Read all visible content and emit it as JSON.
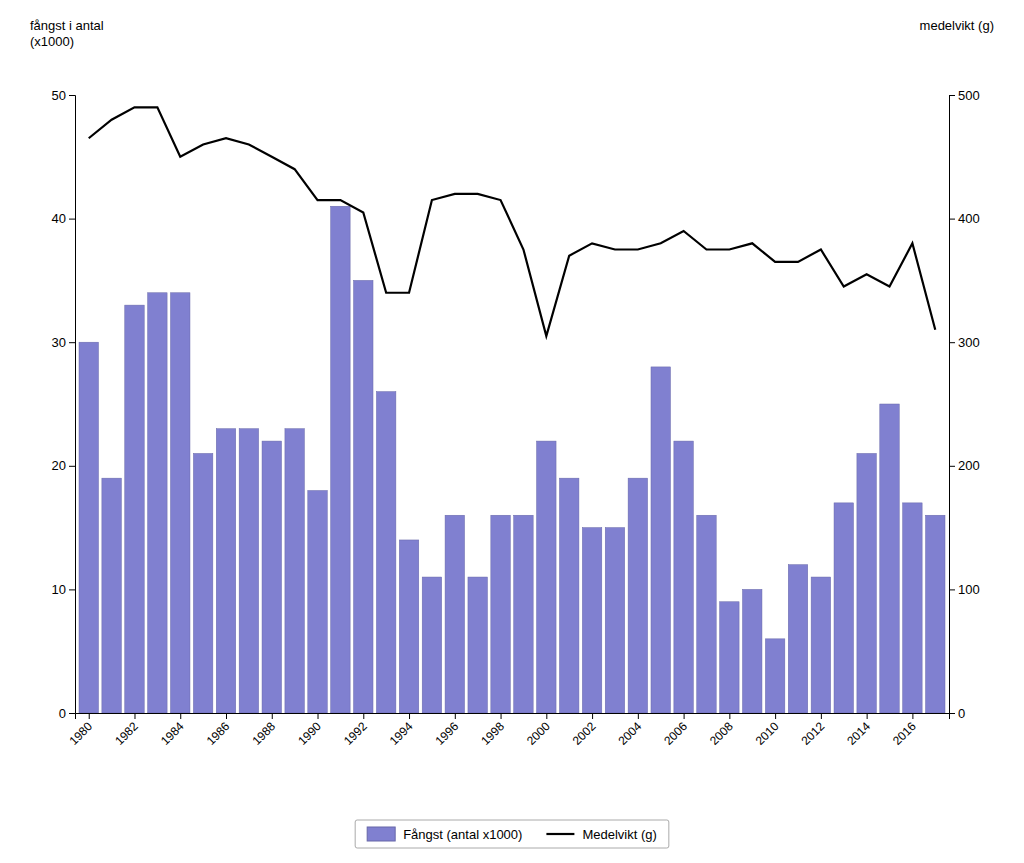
{
  "chart_data": {
    "type": "bar",
    "x": [
      1980,
      1981,
      1982,
      1983,
      1984,
      1985,
      1986,
      1987,
      1988,
      1989,
      1990,
      1991,
      1992,
      1993,
      1994,
      1995,
      1996,
      1997,
      1998,
      1999,
      2000,
      2001,
      2002,
      2003,
      2004,
      2005,
      2006,
      2007,
      2008,
      2009,
      2010,
      2011,
      2012,
      2013,
      2014,
      2015,
      2016,
      2017
    ],
    "series": [
      {
        "name": "Fångst (antal x1000)",
        "type": "bar",
        "color": "#8080d0",
        "values": [
          30,
          19,
          33,
          34,
          34,
          21,
          23,
          23,
          22,
          23,
          18,
          41,
          35,
          26,
          14,
          11,
          16,
          11,
          16,
          16,
          22,
          19,
          15,
          15,
          19,
          28,
          22,
          16,
          9,
          10,
          6,
          12,
          11,
          17,
          21,
          25,
          17,
          16
        ]
      },
      {
        "name": "Medelvikt (g)",
        "type": "line",
        "axis": "y2",
        "color": "#000000",
        "values": [
          465,
          480,
          490,
          490,
          450,
          460,
          465,
          460,
          450,
          440,
          415,
          415,
          405,
          340,
          340,
          415,
          420,
          420,
          415,
          375,
          305,
          370,
          380,
          375,
          375,
          380,
          390,
          375,
          375,
          380,
          365,
          365,
          375,
          345,
          355,
          345,
          380,
          310
        ]
      }
    ],
    "ylabel": "fångst i antal\n(x1000)",
    "y2label": "medelvikt (g)",
    "xlim": [
      1979.4,
      2017.6
    ],
    "xticks": [
      1980,
      1982,
      1984,
      1986,
      1988,
      1990,
      1992,
      1994,
      1996,
      1998,
      2000,
      2002,
      2004,
      2006,
      2008,
      2010,
      2012,
      2014,
      2016
    ],
    "ylim": [
      0,
      50
    ],
    "yticks": [
      0,
      10,
      20,
      30,
      40,
      50
    ],
    "y2lim": [
      0,
      500
    ],
    "y2ticks": [
      0,
      100,
      200,
      300,
      400,
      500
    ],
    "grid": false,
    "legend": "bottom"
  }
}
